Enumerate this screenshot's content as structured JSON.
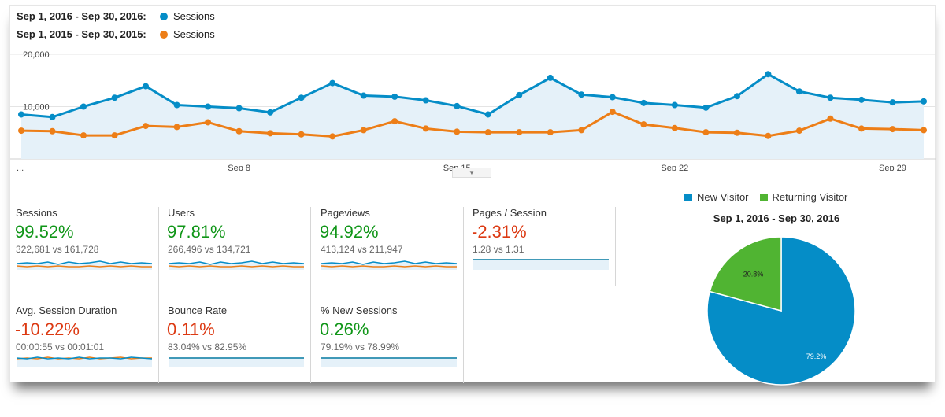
{
  "colors": {
    "current": "#058dc7",
    "previous": "#ed7e17",
    "area": "#e5f1f9",
    "positive": "#109618",
    "negative": "#dc3912",
    "new_visitor": "#058dc7",
    "returning_visitor": "#50b432"
  },
  "legend": {
    "current_range": "Sep 1, 2016 - Sep 30, 2016:",
    "current_series": "Sessions",
    "previous_range": "Sep 1, 2015 - Sep 30, 2015:",
    "previous_series": "Sessions"
  },
  "chart_data": {
    "type": "line",
    "x_tick_labels": [
      "...",
      "Sep 8",
      "Sep 15",
      "Sep 22",
      "Sep 29"
    ],
    "y_tick_labels": [
      "20,000",
      "10,000"
    ],
    "ylim": [
      0,
      20000
    ],
    "series": [
      {
        "name": "Sessions",
        "period": "Sep 1, 2016 - Sep 30, 2016",
        "values": [
          8500,
          8000,
          10000,
          11700,
          13900,
          10300,
          10000,
          9700,
          8900,
          11700,
          14500,
          12100,
          11900,
          11200,
          10100,
          8500,
          12200,
          15500,
          12300,
          11800,
          10700,
          10300,
          9800,
          12000,
          16200,
          12900,
          11700,
          11300,
          10800,
          11000
        ]
      },
      {
        "name": "Sessions",
        "period": "Sep 1, 2015 - Sep 30, 2015",
        "values": [
          5400,
          5300,
          4500,
          4500,
          6300,
          6100,
          7000,
          5300,
          4900,
          4700,
          4300,
          5500,
          7200,
          5800,
          5200,
          5100,
          5100,
          5100,
          5500,
          9000,
          6600,
          5900,
          5100,
          5000,
          4400,
          5400,
          7700,
          5800,
          5700,
          5500
        ]
      }
    ]
  },
  "metrics": [
    {
      "name": "Sessions",
      "change": "99.52%",
      "comparison": "322,681 vs 161,728"
    },
    {
      "name": "Users",
      "change": "97.81%",
      "comparison": "266,496 vs 134,721"
    },
    {
      "name": "Pageviews",
      "change": "94.92%",
      "comparison": "413,124 vs 211,947"
    },
    {
      "name": "Pages / Session",
      "change": "-2.31%",
      "comparison": "1.28 vs 1.31"
    },
    {
      "name": "Avg. Session Duration",
      "change": "-10.22%",
      "comparison": "00:00:55 vs 00:01:01"
    },
    {
      "name": "Bounce Rate",
      "change": "0.11%",
      "comparison": "83.04% vs 82.95%"
    },
    {
      "name": "% New Sessions",
      "change": "0.26%",
      "comparison": "79.19% vs 78.99%"
    }
  ],
  "pie": {
    "title": "Sep 1, 2016 - Sep 30, 2016",
    "legend": [
      "New Visitor",
      "Returning Visitor"
    ],
    "slices": [
      {
        "name": "New Visitor",
        "value": 79.2,
        "label": "79.2%"
      },
      {
        "name": "Returning Visitor",
        "value": 20.8,
        "label": "20.8%"
      }
    ]
  },
  "icons": {
    "collapse": "chevron-down-icon"
  }
}
